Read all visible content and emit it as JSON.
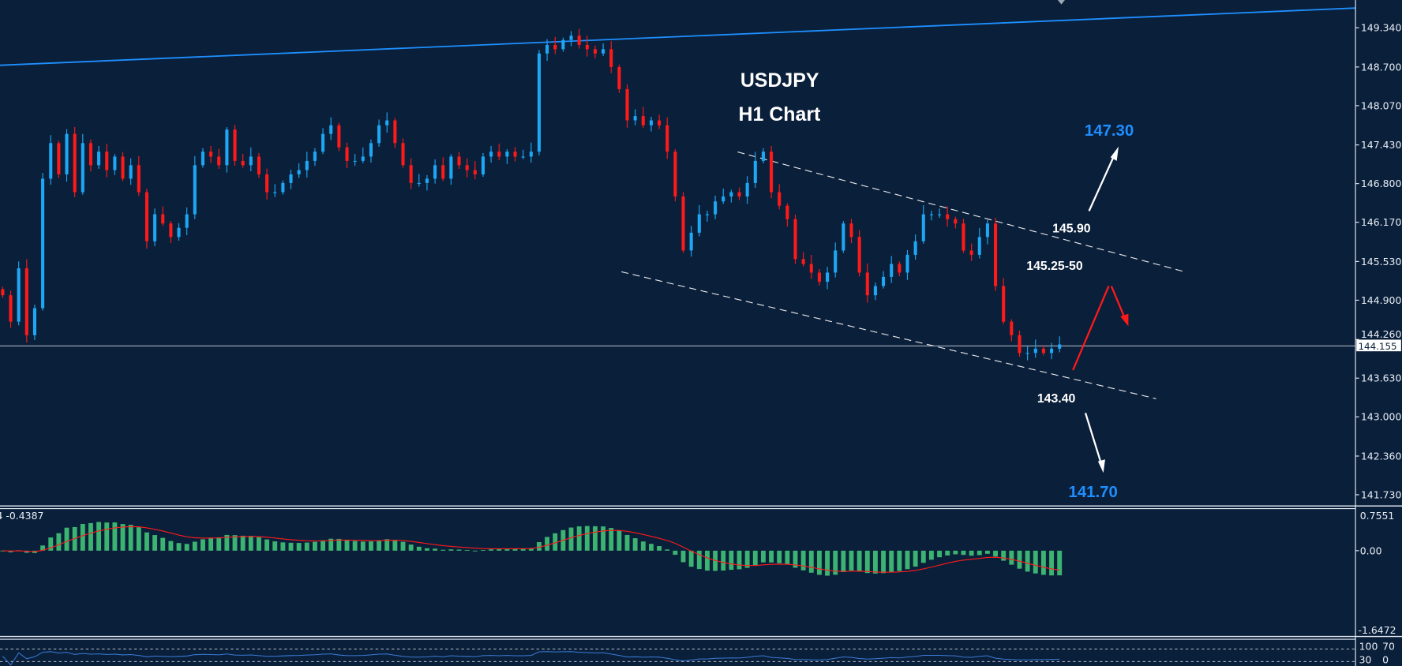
{
  "chart_data": {
    "type": "candlestick",
    "title": "USDJPY",
    "subtitle": "H1 Chart",
    "grid": false,
    "ylim": [
      141.55,
      149.8
    ],
    "y_ticks": [
      "149.340",
      "148.700",
      "148.070",
      "147.430",
      "146.800",
      "146.170",
      "145.530",
      "144.900",
      "144.260",
      "143.630",
      "143.000",
      "142.360",
      "141.730"
    ],
    "last_price": "144.155",
    "closes": [
      144.98,
      144.55,
      145.42,
      144.33,
      144.77,
      146.88,
      147.46,
      146.95,
      147.61,
      146.66,
      147.46,
      147.1,
      147.32,
      147.02,
      147.24,
      146.88,
      147.1,
      146.66,
      145.86,
      146.3,
      146.15,
      145.93,
      146.08,
      146.3,
      147.1,
      147.32,
      147.24,
      147.1,
      147.68,
      147.17,
      147.1,
      147.24,
      146.95,
      146.66,
      146.66,
      146.81,
      146.95,
      147.02,
      147.17,
      147.32,
      147.61,
      147.75,
      147.39,
      147.17,
      147.17,
      147.24,
      147.46,
      147.75,
      147.83,
      147.46,
      147.1,
      146.81,
      146.81,
      146.88,
      147.1,
      146.88,
      147.24,
      147.1,
      147.02,
      146.95,
      147.24,
      147.32,
      147.24,
      147.32,
      147.24,
      147.24,
      147.32,
      148.92,
      149.06,
      148.99,
      149.14,
      149.21,
      149.06,
      148.99,
      148.92,
      148.99,
      148.7,
      148.34,
      147.83,
      147.9,
      147.75,
      147.83,
      147.75,
      147.32,
      146.59,
      145.71,
      146.0,
      146.3,
      146.3,
      146.51,
      146.59,
      146.66,
      146.59,
      146.81,
      147.17,
      147.32,
      146.66,
      146.44,
      146.22,
      145.57,
      145.49,
      145.35,
      145.2,
      145.35,
      145.71,
      146.15,
      145.93,
      145.35,
      144.98,
      145.13,
      145.28,
      145.49,
      145.35,
      145.64,
      145.86,
      146.3,
      146.3,
      146.3,
      146.22,
      146.15,
      145.71,
      145.64,
      145.93,
      146.15,
      145.13,
      144.55,
      144.33,
      144.04,
      144.04,
      144.11,
      144.04,
      144.11,
      144.18
    ],
    "colors": {
      "background": "#0a1f3a",
      "up": "#1ea7f5",
      "down": "#ff1a1a",
      "trendline": "#1e90ff",
      "target": "#1e8fff",
      "text": "#ffffff"
    },
    "annotations": [
      {
        "text": "147.30",
        "color": "#1e8fff"
      },
      {
        "text": "145.90",
        "color": "#ffffff"
      },
      {
        "text": "145.25-50",
        "color": "#ffffff"
      },
      {
        "text": "143.40",
        "color": "#ffffff"
      },
      {
        "text": "141.70",
        "color": "#1e8fff"
      }
    ],
    "macd": {
      "label": "4 -0.4387",
      "ticks": [
        "0.7551",
        "0.00",
        "-1.6472"
      ],
      "ylim": [
        -1.6472,
        0.7551
      ],
      "histogram_color": "#3cb371",
      "signal_color": "#ff1a1a"
    },
    "rsi": {
      "ticks": [
        "100",
        "70",
        "30",
        "0"
      ],
      "levels": [
        70,
        30
      ],
      "line_color": "#3a7bd5"
    }
  }
}
